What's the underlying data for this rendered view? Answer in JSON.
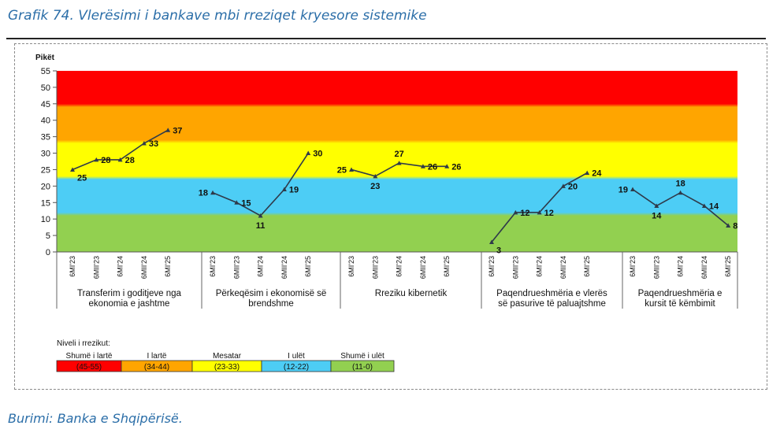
{
  "header": {
    "title": "Grafik 74. Vlerësimi i bankave mbi rreziqet kryesore sistemike"
  },
  "footer": {
    "source": "Burimi: Banka e Shqipërisë."
  },
  "chart_data": {
    "type": "line",
    "ylabel": "Pikët",
    "ylim": [
      0,
      55
    ],
    "yticks": [
      0,
      5,
      10,
      15,
      20,
      25,
      30,
      35,
      40,
      45,
      50,
      55
    ],
    "categories": [
      "6MI'23",
      "6MII'23",
      "6MI'24",
      "6MII'24",
      "6MI'25"
    ],
    "series": [
      {
        "name": "Transferim i goditjeve nga ekonomia e jashtme",
        "values": [
          25,
          28,
          28,
          33,
          37
        ]
      },
      {
        "name": "Përkeqësim i ekonomisë së brendshme",
        "values": [
          18,
          15,
          11,
          19,
          30
        ]
      },
      {
        "name": "Rreziku kibernetik",
        "values": [
          25,
          23,
          27,
          26,
          26
        ]
      },
      {
        "name": "Paqendrueshmëria e vlerës së pasurive të paluajtshme",
        "values": [
          3,
          12,
          12,
          20,
          24
        ]
      },
      {
        "name": "Paqendrueshmëria e kursit të këmbimit",
        "values": [
          19,
          14,
          18,
          14,
          8
        ]
      }
    ],
    "group_labels": [
      [
        "Transferim i goditjeve nga",
        "ekonomia e jashtme"
      ],
      [
        "Përkeqësim i ekonomisë së",
        "brendshme"
      ],
      [
        "Rreziku kibernetik"
      ],
      [
        "Paqendrueshmëria e vlerës",
        "së pasurive të paluajtshme"
      ],
      [
        "Paqendrueshmëria e",
        "kursit të këmbimit"
      ]
    ],
    "bands": [
      {
        "from": 45,
        "to": 55,
        "color": "#ff0000"
      },
      {
        "from": 34,
        "to": 44,
        "color": "#ffa500"
      },
      {
        "from": 23,
        "to": 33,
        "color": "#ffff00"
      },
      {
        "from": 12,
        "to": 22,
        "color": "#4dcdf5"
      },
      {
        "from": 0,
        "to": 11,
        "color": "#92d050"
      }
    ],
    "legend": {
      "title": "Niveli i rrezikut:",
      "items": [
        {
          "name": "Shumë i lartë",
          "range": "(45-55)",
          "color": "#ff0000"
        },
        {
          "name": "I lartë",
          "range": "(34-44)",
          "color": "#ffa500"
        },
        {
          "name": "Mesatar",
          "range": "(23-33)",
          "color": "#ffff00"
        },
        {
          "name": "I ulët",
          "range": "(12-22)",
          "color": "#4dcdf5"
        },
        {
          "name": "Shumë i ulët",
          "range": "(11-0)",
          "color": "#92d050"
        }
      ]
    }
  }
}
